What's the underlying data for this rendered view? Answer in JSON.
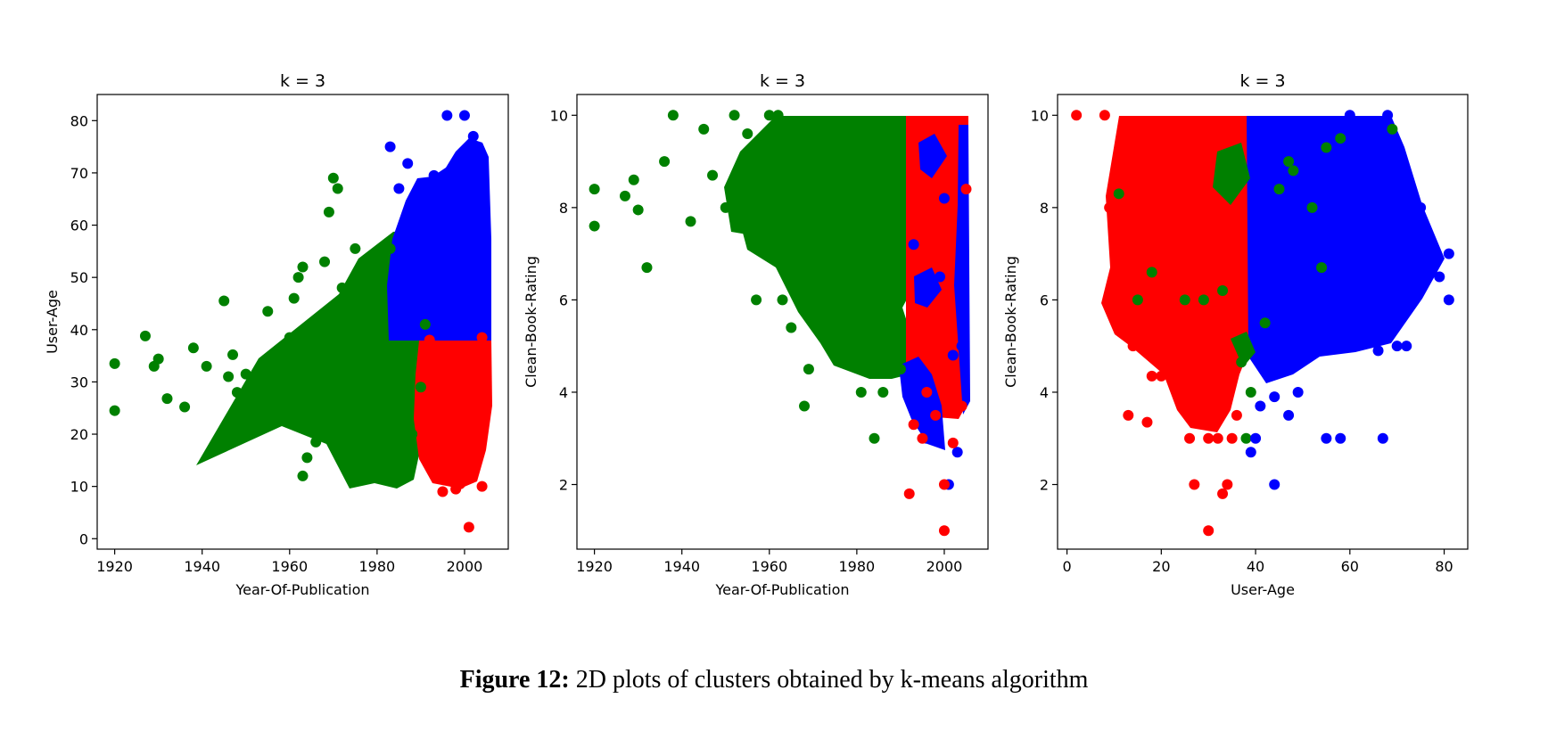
{
  "colors": {
    "red": "#ff0000",
    "green": "#008000",
    "blue": "#0000ff"
  },
  "caption": {
    "label": "Figure 12:",
    "text": " 2D plots of clusters obtained by k-means algorithm"
  },
  "chart_data": [
    {
      "type": "scatter",
      "title": "k = 3",
      "xlabel": "Year-Of-Publication",
      "ylabel": "User-Age",
      "xlim": [
        1916,
        2010
      ],
      "ylim": [
        -2,
        85
      ],
      "xticks": [
        1920,
        1940,
        1960,
        1980,
        2000
      ],
      "yticks": [
        0,
        10,
        20,
        30,
        40,
        50,
        60,
        70,
        80
      ],
      "grid": false,
      "series": [
        {
          "color": "green",
          "points": [
            [
              1920,
              33.5
            ],
            [
              1920,
              24.5
            ],
            [
              1927,
              38.8
            ],
            [
              1929,
              33
            ],
            [
              1930,
              34.4
            ],
            [
              1932,
              26.8
            ],
            [
              1936,
              25.2
            ],
            [
              1938,
              36.5
            ],
            [
              1941,
              33
            ],
            [
              1945,
              45.5
            ],
            [
              1946,
              31
            ],
            [
              1947,
              35.2
            ],
            [
              1948,
              28
            ],
            [
              1950,
              31.5
            ],
            [
              1952,
              23
            ],
            [
              1953,
              29
            ],
            [
              1955,
              43.5
            ],
            [
              1958,
              27
            ],
            [
              1960,
              38.5
            ],
            [
              1961,
              46
            ],
            [
              1962,
              50
            ],
            [
              1963,
              12
            ],
            [
              1963,
              52
            ],
            [
              1964,
              15.5
            ],
            [
              1966,
              18.5
            ],
            [
              1968,
              53
            ],
            [
              1969,
              62.5
            ],
            [
              1970,
              69
            ],
            [
              1971,
              67
            ],
            [
              1972,
              48
            ],
            [
              1973,
              22.5
            ],
            [
              1975,
              55.5
            ],
            [
              1976,
              20
            ],
            [
              1977,
              50
            ],
            [
              1980,
              16
            ],
            [
              1981,
              18
            ],
            [
              1982,
              12.7
            ],
            [
              1983,
              55.5
            ],
            [
              1985,
              16
            ],
            [
              1986,
              13.5
            ],
            [
              1988,
              20
            ],
            [
              1990,
              29
            ],
            [
              1991,
              41
            ]
          ]
        },
        {
          "color": "blue",
          "points": [
            [
              1983,
              75
            ],
            [
              1985,
              67
            ],
            [
              1987,
              71.8
            ],
            [
              1990,
              64
            ],
            [
              1993,
              69.5
            ],
            [
              1996,
              81
            ],
            [
              1998,
              65
            ],
            [
              1999,
              72
            ],
            [
              2000,
              81
            ],
            [
              2001,
              70
            ],
            [
              2002,
              77
            ],
            [
              2003,
              74
            ],
            [
              2004,
              72.5
            ],
            [
              1999,
              59
            ],
            [
              2002,
              60
            ]
          ]
        },
        {
          "color": "red",
          "points": [
            [
              1995,
              9
            ],
            [
              1998,
              9.5
            ],
            [
              1999,
              10.5
            ],
            [
              2001,
              2.2
            ],
            [
              1993,
              15
            ],
            [
              2004,
              10
            ],
            [
              1992,
              38
            ],
            [
              2004,
              38.5
            ]
          ]
        }
      ]
    },
    {
      "type": "scatter",
      "title": "k = 3",
      "xlabel": "Year-Of-Publication",
      "ylabel": "Clean-Book-Rating",
      "xlim": [
        1916,
        2010
      ],
      "ylim": [
        0.6,
        10.45
      ],
      "xticks": [
        1920,
        1940,
        1960,
        1980,
        2000
      ],
      "yticks": [
        2,
        4,
        6,
        8,
        10
      ],
      "grid": false,
      "series": [
        {
          "color": "green",
          "points": [
            [
              1920,
              8.4
            ],
            [
              1920,
              7.6
            ],
            [
              1927,
              8.25
            ],
            [
              1929,
              8.6
            ],
            [
              1930,
              7.95
            ],
            [
              1932,
              6.7
            ],
            [
              1936,
              9.0
            ],
            [
              1938,
              10
            ],
            [
              1942,
              7.7
            ],
            [
              1945,
              9.7
            ],
            [
              1947,
              8.7
            ],
            [
              1950,
              8.0
            ],
            [
              1952,
              10
            ],
            [
              1955,
              9.6
            ],
            [
              1957,
              6.0
            ],
            [
              1960,
              10
            ],
            [
              1962,
              10
            ],
            [
              1963,
              6.0
            ],
            [
              1965,
              5.4
            ],
            [
              1968,
              3.7
            ],
            [
              1969,
              4.5
            ],
            [
              1972,
              5.8
            ],
            [
              1975,
              4.9
            ],
            [
              1981,
              4.0
            ],
            [
              1984,
              3.0
            ],
            [
              1986,
              4.0
            ],
            [
              1990,
              5.0
            ],
            [
              1990,
              4.5
            ]
          ]
        },
        {
          "color": "blue",
          "points": [
            [
              1996,
              3.0
            ],
            [
              2001,
              2.0
            ],
            [
              2003,
              2.7
            ],
            [
              2002,
              4.8
            ],
            [
              1999,
              6.5
            ],
            [
              1997,
              9.4
            ],
            [
              2000,
              8.2
            ],
            [
              2004,
              5.0
            ],
            [
              1993,
              7.2
            ],
            [
              1995,
              3.5
            ]
          ]
        },
        {
          "color": "red",
          "points": [
            [
              1992,
              1.8
            ],
            [
              2000,
              1.0
            ],
            [
              2000,
              2.0
            ],
            [
              1993,
              3.3
            ],
            [
              1995,
              3.0
            ],
            [
              1998,
              3.5
            ],
            [
              2004,
              3.7
            ],
            [
              2002,
              2.9
            ],
            [
              1996,
              4.0
            ],
            [
              2005,
              8.4
            ]
          ]
        }
      ]
    },
    {
      "type": "scatter",
      "title": "k = 3",
      "xlabel": "User-Age",
      "ylabel": "Clean-Book-Rating",
      "xlim": [
        -2,
        85
      ],
      "ylim": [
        0.6,
        10.45
      ],
      "xticks": [
        0,
        20,
        40,
        60,
        80
      ],
      "yticks": [
        2,
        4,
        6,
        8,
        10
      ],
      "grid": false,
      "series": [
        {
          "color": "red",
          "points": [
            [
              2,
              10
            ],
            [
              8,
              10
            ],
            [
              9,
              8.0
            ],
            [
              9,
              6.0
            ],
            [
              12,
              6.5
            ],
            [
              13,
              3.5
            ],
            [
              14,
              5.0
            ],
            [
              17,
              3.35
            ],
            [
              18,
              4.35
            ],
            [
              20,
              4.35
            ],
            [
              26,
              3.0
            ],
            [
              27,
              2.0
            ],
            [
              28,
              3.5
            ],
            [
              30,
              1.0
            ],
            [
              30,
              3.0
            ],
            [
              32,
              3.0
            ],
            [
              33,
              1.8
            ],
            [
              34,
              2.0
            ],
            [
              35,
              3.0
            ],
            [
              36,
              3.5
            ]
          ]
        },
        {
          "color": "green",
          "points": [
            [
              11,
              8.3
            ],
            [
              15,
              6.0
            ],
            [
              18,
              6.6
            ],
            [
              25,
              6.0
            ],
            [
              29,
              6.0
            ],
            [
              33,
              6.2
            ],
            [
              37,
              4.65
            ],
            [
              38,
              3.0
            ],
            [
              39,
              4.0
            ],
            [
              42,
              5.5
            ],
            [
              45,
              8.4
            ],
            [
              47,
              9.0
            ],
            [
              48,
              8.8
            ],
            [
              52,
              8.0
            ],
            [
              54,
              6.7
            ],
            [
              55,
              9.3
            ],
            [
              58,
              9.5
            ],
            [
              69,
              9.7
            ]
          ]
        },
        {
          "color": "blue",
          "points": [
            [
              39,
              2.7
            ],
            [
              44,
              2.0
            ],
            [
              40,
              3.0
            ],
            [
              41,
              3.7
            ],
            [
              44,
              3.9
            ],
            [
              47,
              3.5
            ],
            [
              49,
              4.0
            ],
            [
              55,
              3.0
            ],
            [
              58,
              3.0
            ],
            [
              67,
              3.0
            ],
            [
              60,
              5.0
            ],
            [
              62,
              6.0
            ],
            [
              66,
              4.9
            ],
            [
              70,
              5.0
            ],
            [
              72,
              5.0
            ],
            [
              73,
              7.0
            ],
            [
              75,
              7.3
            ],
            [
              77,
              7.0
            ],
            [
              79,
              6.5
            ],
            [
              81,
              7.0
            ],
            [
              81,
              6.0
            ],
            [
              75,
              8.0
            ],
            [
              70,
              9.0
            ],
            [
              68,
              10
            ],
            [
              65,
              9.0
            ],
            [
              62,
              9.3
            ],
            [
              60,
              10
            ]
          ]
        }
      ]
    }
  ]
}
